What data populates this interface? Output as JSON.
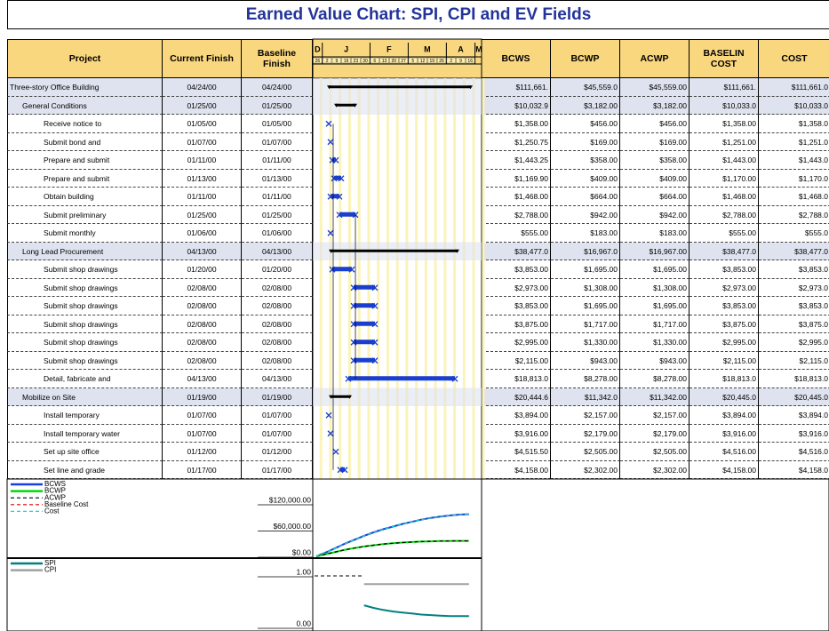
{
  "title": "Earned Value Chart: SPI, CPI and EV Fields",
  "table": {
    "columns": [
      "Project",
      "Current Finish",
      "Baseline Finish",
      "BCWS",
      "BCWP",
      "ACWP",
      "BASELIN COST",
      "COST"
    ],
    "rows": [
      [
        "Three-story Office Building",
        "04/24/00",
        "04/24/00",
        "$111,661.",
        "$45,559.0",
        "$45,559.00",
        "$111,661.",
        "$111,661.0"
      ],
      [
        "General Conditions",
        "01/25/00",
        "01/25/00",
        "$10,032.9",
        "$3,182.00",
        "$3,182.00",
        "$10,033.0",
        "$10,033.0"
      ],
      [
        "Receive notice to",
        "01/05/00",
        "01/05/00",
        "$1,358.00",
        "$456.00",
        "$456.00",
        "$1,358.00",
        "$1,358.0"
      ],
      [
        "Submit bond and",
        "01/07/00",
        "01/07/00",
        "$1,250.75",
        "$169.00",
        "$169.00",
        "$1,251.00",
        "$1,251.0"
      ],
      [
        "Prepare and submit",
        "01/11/00",
        "01/11/00",
        "$1,443.25",
        "$358.00",
        "$358.00",
        "$1,443.00",
        "$1,443.0"
      ],
      [
        "Prepare and submit",
        "01/13/00",
        "01/13/00",
        "$1,169.90",
        "$409.00",
        "$409.00",
        "$1,170.00",
        "$1,170.0"
      ],
      [
        "Obtain building",
        "01/11/00",
        "01/11/00",
        "$1,468.00",
        "$664.00",
        "$664.00",
        "$1,468.00",
        "$1,468.0"
      ],
      [
        "Submit preliminary",
        "01/25/00",
        "01/25/00",
        "$2,788.00",
        "$942.00",
        "$942.00",
        "$2,788.00",
        "$2,788.0"
      ],
      [
        "Submit monthly",
        "01/06/00",
        "01/06/00",
        "$555.00",
        "$183.00",
        "$183.00",
        "$555.00",
        "$555.0"
      ],
      [
        "Long Lead Procurement",
        "04/13/00",
        "04/13/00",
        "$38,477.0",
        "$16,967.0",
        "$16,967.00",
        "$38,477.0",
        "$38,477.0"
      ],
      [
        "Submit shop drawings",
        "01/20/00",
        "01/20/00",
        "$3,853.00",
        "$1,695.00",
        "$1,695.00",
        "$3,853.00",
        "$3,853.0"
      ],
      [
        "Submit shop drawings",
        "02/08/00",
        "02/08/00",
        "$2,973.00",
        "$1,308.00",
        "$1,308.00",
        "$2,973.00",
        "$2,973.0"
      ],
      [
        "Submit shop drawings",
        "02/08/00",
        "02/08/00",
        "$3,853.00",
        "$1,695.00",
        "$1,695.00",
        "$3,853.00",
        "$3,853.0"
      ],
      [
        "Submit shop drawings",
        "02/08/00",
        "02/08/00",
        "$3,875.00",
        "$1,717.00",
        "$1,717.00",
        "$3,875.00",
        "$3,875.0"
      ],
      [
        "Submit shop drawings",
        "02/08/00",
        "02/08/00",
        "$2,995.00",
        "$1,330.00",
        "$1,330.00",
        "$2,995.00",
        "$2,995.0"
      ],
      [
        "Submit shop drawings",
        "02/08/00",
        "02/08/00",
        "$2,115.00",
        "$943.00",
        "$943.00",
        "$2,115.00",
        "$2,115.0"
      ],
      [
        "Detail, fabricate and",
        "04/13/00",
        "04/13/00",
        "$18,813.0",
        "$8,278.00",
        "$8,278.00",
        "$18,813.0",
        "$18,813.0"
      ],
      [
        "Mobilize on Site",
        "01/19/00",
        "01/19/00",
        "$20,444.6",
        "$11,342.0",
        "$11,342.00",
        "$20,445.0",
        "$20,445.0"
      ],
      [
        "Install temporary",
        "01/07/00",
        "01/07/00",
        "$3,894.00",
        "$2,157.00",
        "$2,157.00",
        "$3,894.00",
        "$3,894.0"
      ],
      [
        "Install temporary water",
        "01/07/00",
        "01/07/00",
        "$3,916.00",
        "$2,179.00",
        "$2,179.00",
        "$3,916.00",
        "$3,916.0"
      ],
      [
        "Set up site office",
        "01/12/00",
        "01/12/00",
        "$4,515.50",
        "$2,505.00",
        "$2,505.00",
        "$4,516.00",
        "$4,516.0"
      ],
      [
        "Set line and grade",
        "01/17/00",
        "01/17/00",
        "$4,158.00",
        "$2,302.00",
        "$2,302.00",
        "$4,158.00",
        "$4,158.0"
      ]
    ]
  },
  "timescale": {
    "months": [
      "D",
      "J",
      "F",
      "M",
      "A",
      "M"
    ],
    "weeks": [
      "26",
      "2",
      "9",
      "16",
      "23",
      "30",
      "6",
      "13",
      "20",
      "27",
      "5",
      "12",
      "19",
      "26",
      "2",
      "9",
      "16"
    ]
  },
  "chart_data": [
    {
      "type": "line",
      "ylim": [
        0,
        120000
      ],
      "yticks": [
        {
          "value": 120000,
          "label": "$120,000.00"
        },
        {
          "value": 60000,
          "label": "$60,000.00"
        },
        {
          "value": 0,
          "label": "$0.00"
        }
      ],
      "series": [
        {
          "name": "BCWS",
          "color": "#1a3fe0",
          "dashed": false,
          "values": [
            0,
            9000,
            19000,
            29000,
            38000,
            47000,
            55000,
            62000,
            68000,
            74000,
            79000,
            84000,
            88000,
            91000,
            93500,
            95500,
            96400
          ]
        },
        {
          "name": "BCWP",
          "color": "#00d800",
          "dashed": false,
          "values": [
            0,
            5000,
            10000,
            15000,
            19000,
            22500,
            25500,
            28000,
            30000,
            31500,
            32800,
            33700,
            34400,
            34900,
            35200,
            35300,
            35400
          ]
        },
        {
          "name": "ACWP",
          "color": "#000000",
          "dashed": true,
          "values": [
            0,
            5000,
            10000,
            15000,
            19000,
            22500,
            25500,
            28000,
            30000,
            31500,
            32800,
            33700,
            34400,
            34900,
            35200,
            35300,
            35400
          ]
        },
        {
          "name": "Baseline Cost",
          "color": "#e00000",
          "dashed": true,
          "values": [
            0,
            9000,
            19000,
            29000,
            38000,
            47000,
            55000,
            62000,
            68000,
            74000,
            79000,
            84000,
            88000,
            91000,
            93500,
            95500,
            96400
          ]
        },
        {
          "name": "Cost",
          "color": "#00e0e0",
          "dashed": true,
          "values": [
            0,
            9000,
            19000,
            29000,
            38000,
            47000,
            55000,
            62000,
            68000,
            74000,
            79000,
            84000,
            88000,
            91000,
            93500,
            95500,
            96400
          ]
        }
      ]
    },
    {
      "type": "line",
      "ylim": [
        0,
        1
      ],
      "yticks": [
        {
          "value": 1,
          "label": "1.00"
        },
        {
          "value": 0,
          "label": "0.00"
        }
      ],
      "series": [
        {
          "name": "SPI",
          "color": "#008080",
          "dashed": false,
          "values": [
            null,
            null,
            null,
            null,
            null,
            0.43,
            0.38,
            0.34,
            0.31,
            0.29,
            0.27,
            0.25,
            0.24,
            0.23,
            0.22,
            0.22,
            0.22
          ]
        },
        {
          "name": "CPI",
          "color": "#a0a0a0",
          "dashed": false,
          "values": [
            null,
            null,
            null,
            null,
            null,
            0.84,
            0.84,
            0.84,
            0.84,
            0.84,
            0.84,
            0.84,
            0.84,
            0.84,
            0.84,
            0.84,
            0.84
          ]
        }
      ]
    }
  ]
}
